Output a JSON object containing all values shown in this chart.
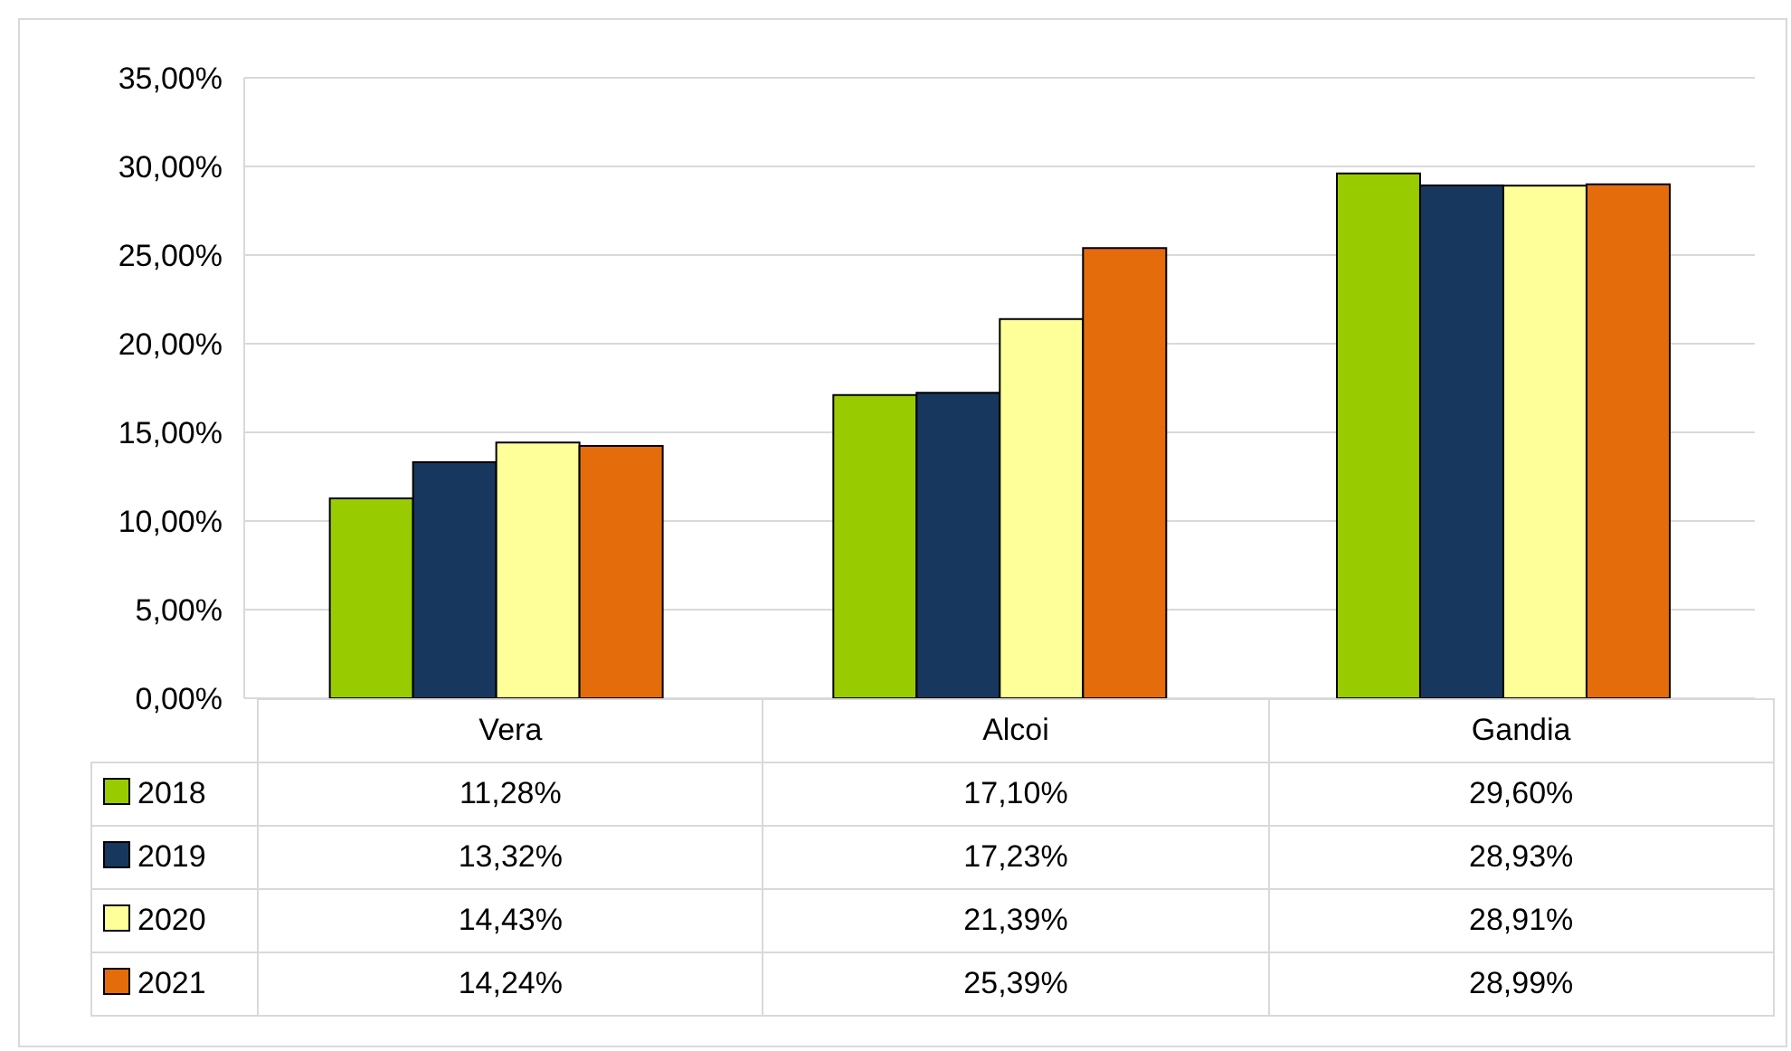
{
  "chart_data": {
    "type": "bar",
    "categories": [
      "Vera",
      "Alcoi",
      "Gandia"
    ],
    "series": [
      {
        "name": "2018",
        "color": "#99cc00",
        "values": [
          11.28,
          17.1,
          29.6
        ],
        "value_labels": [
          "11,28%",
          "17,10%",
          "29,60%"
        ]
      },
      {
        "name": "2019",
        "color": "#17375e",
        "values": [
          13.32,
          17.23,
          28.93
        ],
        "value_labels": [
          "13,32%",
          "17,23%",
          "28,93%"
        ]
      },
      {
        "name": "2020",
        "color": "#ffff99",
        "values": [
          14.43,
          21.39,
          28.91
        ],
        "value_labels": [
          "14,43%",
          "21,39%",
          "28,91%"
        ]
      },
      {
        "name": "2021",
        "color": "#e46c0a",
        "values": [
          14.24,
          25.39,
          28.99
        ],
        "value_labels": [
          "14,24%",
          "25,39%",
          "28,99%"
        ]
      }
    ],
    "ylim": [
      0,
      35
    ],
    "yticks": [
      {
        "value": 0,
        "label": "0,00%"
      },
      {
        "value": 5,
        "label": "5,00%"
      },
      {
        "value": 10,
        "label": "10,00%"
      },
      {
        "value": 15,
        "label": "15,00%"
      },
      {
        "value": 20,
        "label": "20,00%"
      },
      {
        "value": 25,
        "label": "25,00%"
      },
      {
        "value": 30,
        "label": "30,00%"
      },
      {
        "value": 35,
        "label": "35,00%"
      }
    ],
    "grid": "y",
    "legend": "bottom"
  }
}
